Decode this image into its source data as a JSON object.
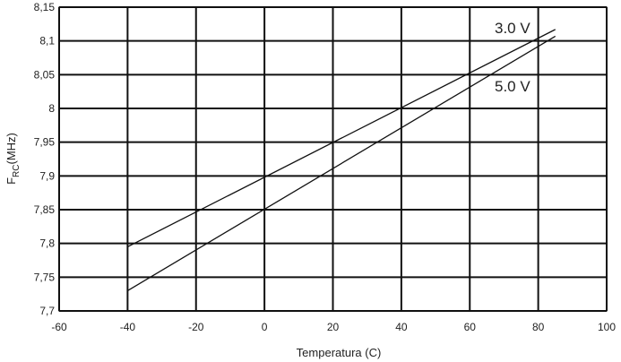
{
  "chart_data": {
    "type": "line",
    "xlabel": "Temperatura (C)",
    "ylabel_main": "F",
    "ylabel_sub": "RC",
    "ylabel_tail": "(MHz)",
    "xlim": [
      -60,
      100
    ],
    "ylim": [
      7.7,
      8.15
    ],
    "x_ticks": [
      -60,
      -40,
      -20,
      0,
      20,
      40,
      60,
      80,
      100
    ],
    "x_tick_labels": [
      "-60",
      "-40",
      "-20",
      "0",
      "20",
      "40",
      "60",
      "80",
      "100"
    ],
    "y_ticks": [
      7.7,
      7.75,
      7.8,
      7.85,
      7.9,
      7.95,
      8.0,
      8.05,
      8.1,
      8.15
    ],
    "y_tick_labels": [
      "7,7",
      "7,75",
      "7,8",
      "7,85",
      "7,9",
      "7,95",
      "8",
      "8,05",
      "8,1",
      "8,15"
    ],
    "grid": true,
    "series": [
      {
        "name": "3.0 V",
        "x": [
          -40,
          85
        ],
        "values": [
          7.795,
          8.117
        ]
      },
      {
        "name": "5.0 V",
        "x": [
          -40,
          85
        ],
        "values": [
          7.73,
          8.107
        ]
      }
    ]
  }
}
